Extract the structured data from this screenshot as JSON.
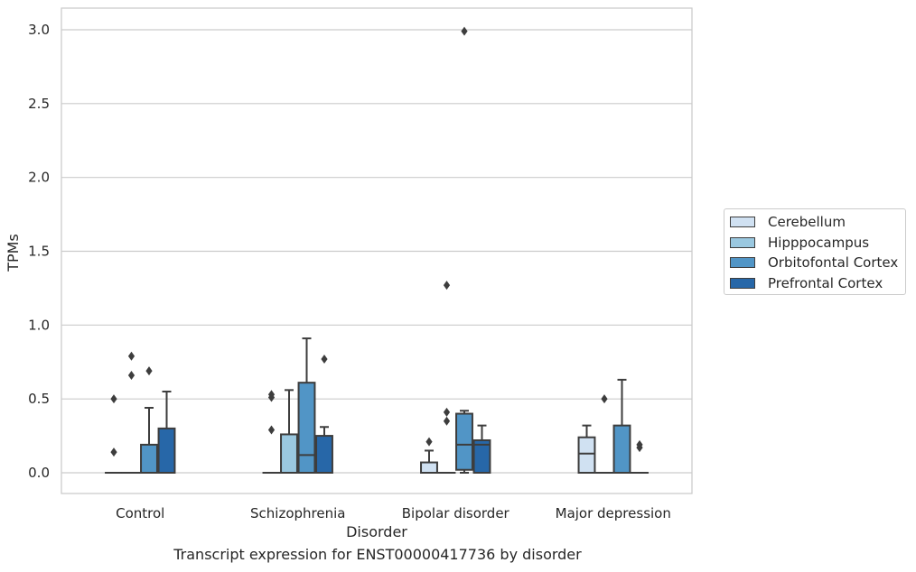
{
  "chart_data": {
    "type": "box",
    "xlabel": "Disorder",
    "ylabel": "TPMs",
    "ylim": [
      -0.15,
      3.15
    ],
    "yticks": [
      0.0,
      0.5,
      1.0,
      1.5,
      2.0,
      2.5,
      3.0
    ],
    "ytick_labels": [
      "0.0",
      "0.5",
      "1.0",
      "1.5",
      "2.0",
      "2.5",
      "3.0"
    ],
    "grid": "horizontal",
    "legend_position": "right",
    "categories": [
      "Control",
      "Schizophrenia",
      "Bipolar disorder",
      "Major depression"
    ],
    "series": [
      {
        "name": "Cerebellum",
        "color": "#d0e1f2",
        "boxes": [
          {
            "q1": 0,
            "median": 0,
            "q3": 0,
            "whisker_low": 0,
            "whisker_high": 0,
            "outliers": [
              0.5,
              0.14
            ]
          },
          {
            "q1": 0,
            "median": 0,
            "q3": 0,
            "whisker_low": 0,
            "whisker_high": 0,
            "outliers": []
          },
          {
            "q1": 0,
            "median": 0,
            "q3": 0.07,
            "whisker_low": 0,
            "whisker_high": 0.15,
            "outliers": [
              0.21
            ]
          },
          {
            "q1": 0,
            "median": 0.13,
            "q3": 0.24,
            "whisker_low": 0,
            "whisker_high": 0.32,
            "outliers": []
          }
        ]
      },
      {
        "name": "Hipppocampus",
        "color": "#9ac8e0",
        "boxes": [
          {
            "q1": 0,
            "median": 0,
            "q3": 0,
            "whisker_low": 0,
            "whisker_high": 0,
            "outliers": [
              0.79,
              0.66
            ]
          },
          {
            "q1": 0,
            "median": 0,
            "q3": 0.26,
            "whisker_low": 0,
            "whisker_high": 0.56,
            "outliers": []
          },
          {
            "q1": 0,
            "median": 0,
            "q3": 0,
            "whisker_low": 0,
            "whisker_high": 0,
            "outliers": [
              1.27,
              0.41,
              0.35
            ]
          },
          {
            "q1": 0,
            "median": 0,
            "q3": 0,
            "whisker_low": 0,
            "whisker_high": 0,
            "outliers": [
              0.5
            ]
          }
        ]
      },
      {
        "name": "Orbitofontal Cortex",
        "color": "#5195c6",
        "boxes": [
          {
            "q1": 0,
            "median": 0,
            "q3": 0.19,
            "whisker_low": 0,
            "whisker_high": 0.44,
            "outliers": [
              0.69
            ]
          },
          {
            "q1": 0,
            "median": 0.12,
            "q3": 0.61,
            "whisker_low": 0,
            "whisker_high": 0.91,
            "outliers": []
          },
          {
            "q1": 0.02,
            "median": 0.19,
            "q3": 0.4,
            "whisker_low": 0,
            "whisker_high": 0.42,
            "outliers": [
              2.99
            ]
          },
          {
            "q1": 0,
            "median": 0,
            "q3": 0.32,
            "whisker_low": 0,
            "whisker_high": 0.63,
            "outliers": []
          }
        ]
      },
      {
        "name": "Prefrontal Cortex",
        "color": "#2767a8",
        "boxes": [
          {
            "q1": 0,
            "median": 0,
            "q3": 0.3,
            "whisker_low": 0,
            "whisker_high": 0.55,
            "outliers": []
          },
          {
            "q1": 0,
            "median": 0,
            "q3": 0.25,
            "whisker_low": 0,
            "whisker_high": 0.31,
            "outliers": [
              0.77
            ]
          },
          {
            "q1": 0,
            "median": 0.19,
            "q3": 0.22,
            "whisker_low": 0,
            "whisker_high": 0.32,
            "outliers": []
          },
          {
            "q1": 0,
            "median": 0,
            "q3": 0,
            "whisker_low": 0,
            "whisker_high": 0,
            "outliers": [
              0.19,
              0.17
            ]
          }
        ]
      }
    ],
    "schizophrenia_extra_outliers": {
      "series": "Cerebellum",
      "values": [
        0.53,
        0.51,
        0.29
      ]
    },
    "caption": "Transcript expression for ENST00000417736 by disorder"
  }
}
